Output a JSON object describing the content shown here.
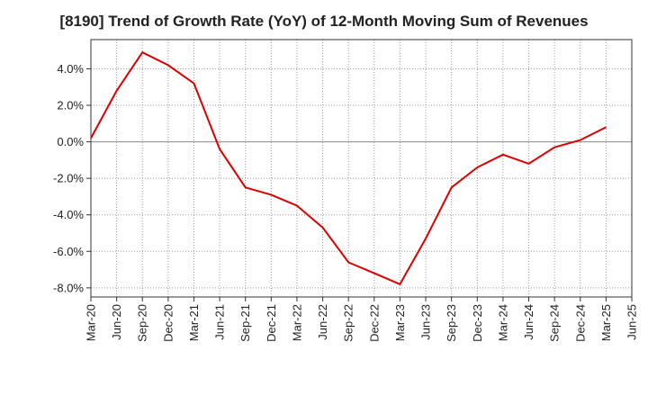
{
  "chart_data": {
    "type": "line",
    "title": "[8190]  Trend of Growth Rate (YoY) of 12-Month Moving Sum of Revenues",
    "xlabel": "",
    "ylabel": "",
    "x_ticks": [
      "Mar-20",
      "Jun-20",
      "Sep-20",
      "Dec-20",
      "Mar-21",
      "Jun-21",
      "Sep-21",
      "Dec-21",
      "Mar-22",
      "Jun-22",
      "Sep-22",
      "Dec-22",
      "Mar-23",
      "Jun-23",
      "Sep-23",
      "Dec-23",
      "Mar-24",
      "Jun-24",
      "Sep-24",
      "Dec-24",
      "Mar-25",
      "Jun-25"
    ],
    "y_ticks": [
      {
        "value": 4.0,
        "label": "4.0%"
      },
      {
        "value": 2.0,
        "label": "2.0%"
      },
      {
        "value": 0.0,
        "label": "0.0%"
      },
      {
        "value": -2.0,
        "label": "-2.0%"
      },
      {
        "value": -4.0,
        "label": "-4.0%"
      },
      {
        "value": -6.0,
        "label": "-6.0%"
      },
      {
        "value": -8.0,
        "label": "-8.0%"
      }
    ],
    "ylim": [
      -8.5,
      5.6
    ],
    "grid": true,
    "line_color": "#dd0000",
    "series": [
      {
        "x": [
          "Mar-20",
          "Jun-20",
          "Sep-20",
          "Dec-20",
          "Mar-21",
          "Jun-21",
          "Sep-21",
          "Dec-21",
          "Mar-22",
          "Jun-22",
          "Sep-22",
          "Dec-22",
          "Mar-23",
          "Jun-23",
          "Sep-23",
          "Dec-23",
          "Mar-24",
          "Jun-24",
          "Sep-24",
          "Dec-24",
          "Mar-25"
        ],
        "values": [
          0.2,
          2.8,
          4.9,
          4.2,
          3.2,
          -0.4,
          -2.5,
          -2.9,
          -3.5,
          -4.7,
          -6.6,
          -7.2,
          -7.8,
          -5.3,
          -2.5,
          -1.4,
          -0.7,
          -1.2,
          -0.3,
          0.1,
          0.8
        ]
      }
    ]
  }
}
